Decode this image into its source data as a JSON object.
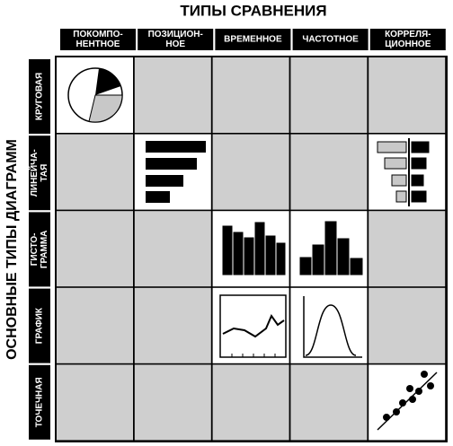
{
  "title": "ТИПЫ СРАВНЕНИЯ",
  "side_title": "ОСНОВНЫЕ ТИПЫ ДИАГРАММ",
  "columns": [
    {
      "lines": [
        "ПОКОМПО-",
        "НЕНТНОЕ"
      ]
    },
    {
      "lines": [
        "ПОЗИЦИОН-",
        "НОЕ"
      ]
    },
    {
      "lines": [
        "ВРЕМЕННОЕ"
      ]
    },
    {
      "lines": [
        "ЧАСТОТНОЕ"
      ]
    },
    {
      "lines": [
        "КОРРЕЛЯ-",
        "ЦИОННОЕ"
      ]
    }
  ],
  "rows": [
    {
      "lines": [
        "КРУГОВАЯ"
      ]
    },
    {
      "lines": [
        "ЛИНЕЙЧА-",
        "ТАЯ"
      ]
    },
    {
      "lines": [
        "ГИСТО-",
        "ГРАММА"
      ]
    },
    {
      "lines": [
        "ГРАФИК"
      ]
    },
    {
      "lines": [
        "ТОЧЕЧНАЯ"
      ]
    }
  ]
}
